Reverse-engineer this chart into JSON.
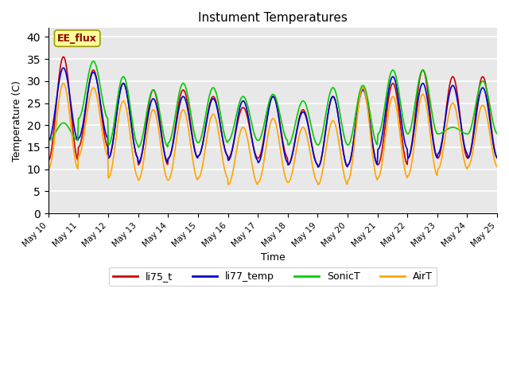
{
  "title": "Instument Temperatures",
  "xlabel": "Time",
  "ylabel": "Temperature (C)",
  "ylim": [
    0,
    42
  ],
  "yticks": [
    0,
    5,
    10,
    15,
    20,
    25,
    30,
    35,
    40
  ],
  "annotation_text": "EE_flux",
  "annotation_color": "#8B0000",
  "annotation_bg": "#FFFF99",
  "bg_color": "#E8E8E8",
  "series_colors": {
    "li75_t": "#CC0000",
    "li77_temp": "#0000CC",
    "SonicT": "#00CC00",
    "AirT": "#FFA500"
  },
  "series_lw": 1.2,
  "xtick_positions": [
    0,
    1,
    2,
    3,
    4,
    5,
    6,
    7,
    8,
    9,
    10,
    11,
    12,
    13,
    14,
    15
  ],
  "xtick_labels": [
    "May 10",
    "May 11",
    "May 12",
    "May 13",
    "May 14",
    "May 15",
    "May 16",
    "May 17",
    "May 18",
    "May 19",
    "May 20",
    "May 21",
    "May 22",
    "May 23",
    "May 24",
    "May 25"
  ],
  "num_days": 15,
  "points_per_day": 48,
  "day_peaks": {
    "li75_t": [
      35.5,
      32.5,
      29.5,
      28.0,
      28.0,
      26.5,
      24.0,
      26.5,
      23.5,
      26.5,
      28.5,
      29.5,
      32.5,
      31.0,
      31.0
    ],
    "li77_temp": [
      33.0,
      32.0,
      29.5,
      26.0,
      26.5,
      26.0,
      25.5,
      26.5,
      23.0,
      26.5,
      28.0,
      31.0,
      29.5,
      29.0,
      28.5
    ],
    "SonicT": [
      20.5,
      34.5,
      31.0,
      28.0,
      29.5,
      28.5,
      26.5,
      27.0,
      25.5,
      28.5,
      29.0,
      32.5,
      32.5,
      19.5,
      30.0
    ],
    "AirT": [
      29.5,
      28.5,
      25.5,
      23.5,
      23.5,
      22.5,
      19.5,
      21.5,
      19.5,
      21.0,
      28.5,
      26.5,
      27.0,
      25.0,
      24.5
    ]
  },
  "day_mins": {
    "li75_t": [
      12.0,
      15.0,
      12.5,
      11.0,
      12.5,
      13.0,
      12.5,
      12.5,
      11.0,
      10.5,
      11.0,
      11.0,
      12.5,
      12.5,
      12.5
    ],
    "li77_temp": [
      16.5,
      17.0,
      12.5,
      11.5,
      12.5,
      13.0,
      12.0,
      11.5,
      11.0,
      10.5,
      11.0,
      14.5,
      12.5,
      13.5,
      12.5
    ],
    "SonicT": [
      16.5,
      21.5,
      15.5,
      15.0,
      16.0,
      16.0,
      16.5,
      16.5,
      15.5,
      15.5,
      15.5,
      18.0,
      18.0,
      18.0,
      18.0
    ],
    "AirT": [
      10.0,
      13.0,
      8.0,
      7.5,
      7.5,
      8.0,
      6.5,
      7.0,
      7.0,
      6.5,
      7.5,
      8.0,
      8.5,
      10.0,
      10.5
    ]
  }
}
